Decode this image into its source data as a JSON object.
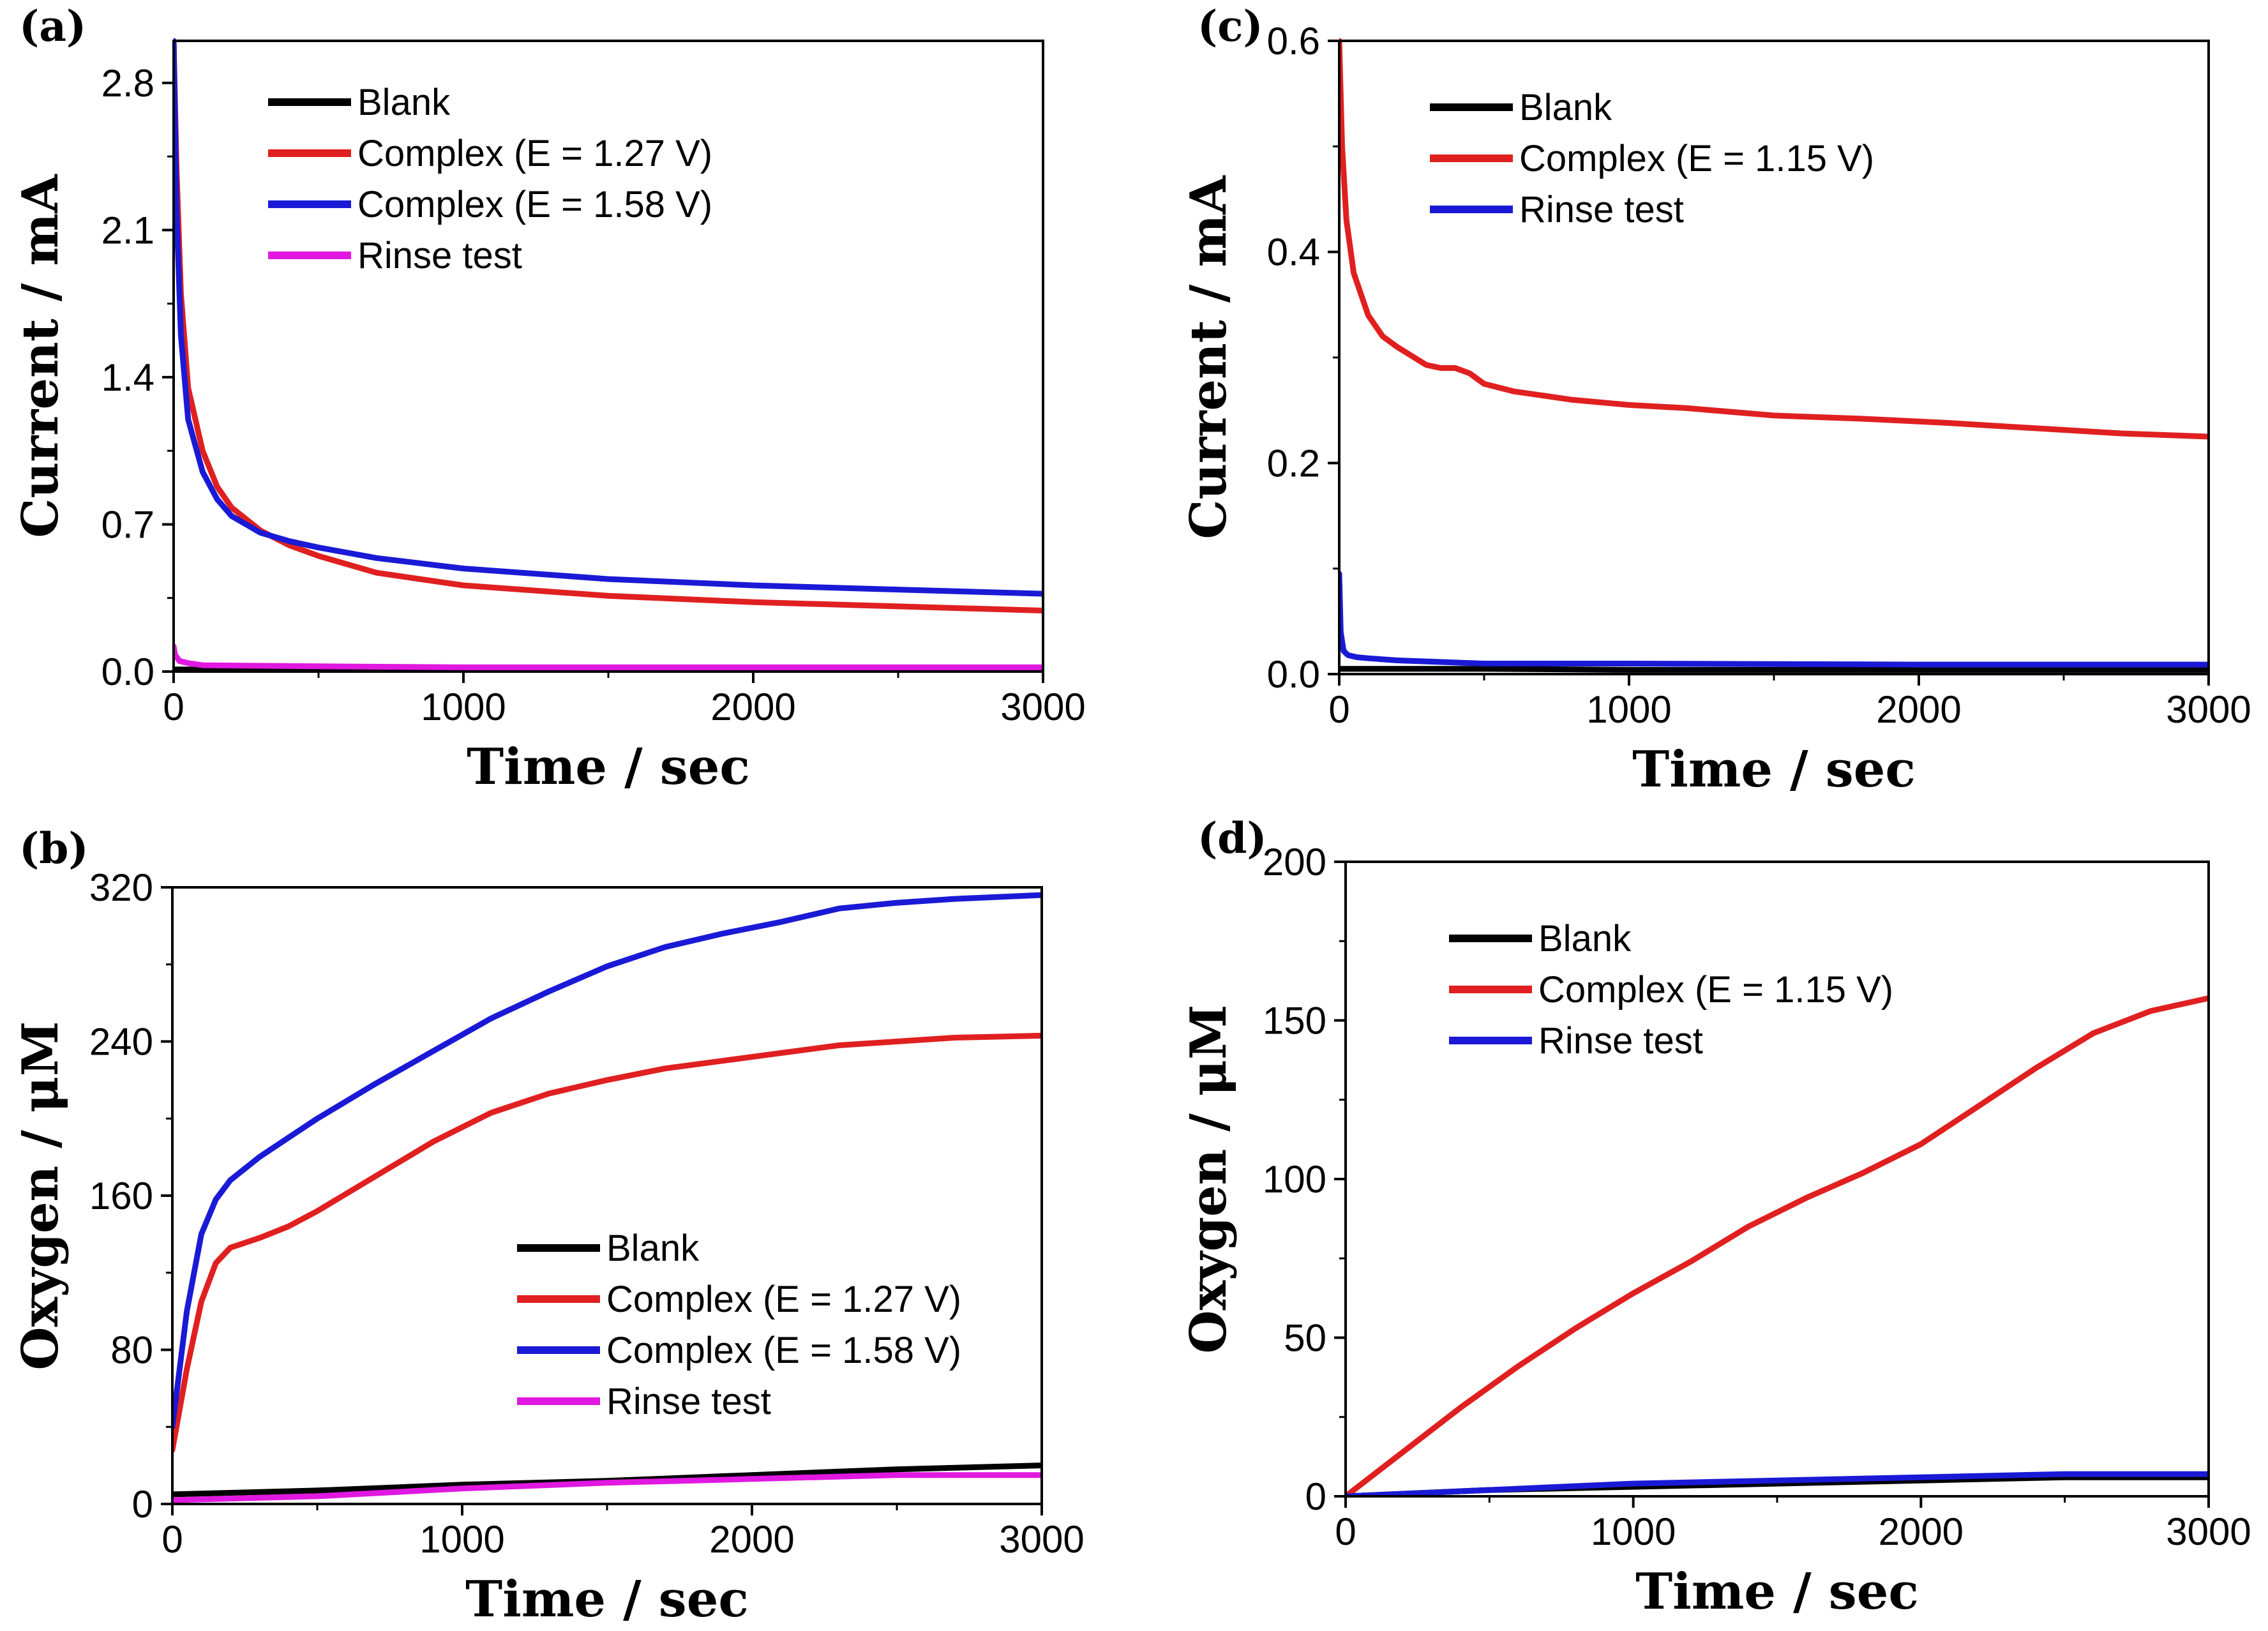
{
  "colors": {
    "Blank": "#000000",
    "Complex (E = 1.27 V)": "#e02020",
    "Complex (E = 1.58 V)": "#1a1ad6",
    "Complex (E = 1.15 V)": "#e02020",
    "Rinse test": "#e018e0"
  },
  "chart_data": [
    {
      "panel": "(a)",
      "type": "line",
      "xlabel": "Time / sec",
      "ylabel": "Current / mA",
      "xlim": [
        0,
        3000
      ],
      "ylim": [
        0,
        3.0
      ],
      "xticks": [
        "0",
        "1000",
        "2000",
        "3000"
      ],
      "yticks": [
        "0.0",
        "0.7",
        "1.4",
        "2.1",
        "2.8"
      ],
      "legend_position": "top-left",
      "series": [
        {
          "name": "Blank",
          "color": "#000000",
          "x": [
            0,
            500,
            1000,
            2000,
            3000
          ],
          "y": [
            0.01,
            0.01,
            0.01,
            0.01,
            0.01
          ]
        },
        {
          "name": "Complex (E = 1.27 V)",
          "color": "#e02020",
          "x": [
            0,
            10,
            25,
            50,
            100,
            150,
            200,
            300,
            400,
            500,
            700,
            1000,
            1500,
            2000,
            2500,
            3000
          ],
          "y": [
            3.0,
            2.4,
            1.8,
            1.35,
            1.05,
            0.88,
            0.78,
            0.67,
            0.6,
            0.55,
            0.47,
            0.41,
            0.36,
            0.33,
            0.31,
            0.29
          ]
        },
        {
          "name": "Complex (E = 1.58 V)",
          "color": "#1a1ad6",
          "x": [
            0,
            10,
            25,
            50,
            100,
            150,
            200,
            300,
            400,
            500,
            700,
            1000,
            1500,
            2000,
            2500,
            3000
          ],
          "y": [
            3.0,
            2.2,
            1.6,
            1.2,
            0.95,
            0.82,
            0.74,
            0.66,
            0.62,
            0.59,
            0.54,
            0.49,
            0.44,
            0.41,
            0.39,
            0.37
          ]
        },
        {
          "name": "Rinse test",
          "color": "#e018e0",
          "x": [
            0,
            5,
            20,
            50,
            100,
            500,
            1000,
            2000,
            3000
          ],
          "y": [
            0.12,
            0.08,
            0.05,
            0.04,
            0.03,
            0.025,
            0.02,
            0.02,
            0.02
          ]
        }
      ]
    },
    {
      "panel": "(b)",
      "type": "line",
      "xlabel": "Time / sec",
      "ylabel": "Oxygen / μM",
      "xlim": [
        0,
        3000
      ],
      "ylim": [
        0,
        320
      ],
      "xticks": [
        "0",
        "1000",
        "2000",
        "3000"
      ],
      "yticks": [
        "0",
        "80",
        "160",
        "240",
        "320"
      ],
      "legend_position": "bottom-right",
      "series": [
        {
          "name": "Blank",
          "color": "#000000",
          "x": [
            0,
            500,
            1000,
            1500,
            2000,
            2500,
            3000
          ],
          "y": [
            5,
            7,
            10,
            12,
            15,
            18,
            20
          ]
        },
        {
          "name": "Complex (E = 1.27 V)",
          "color": "#e02020",
          "x": [
            0,
            50,
            100,
            150,
            200,
            300,
            400,
            500,
            700,
            900,
            1100,
            1300,
            1500,
            1700,
            1900,
            2100,
            2300,
            2500,
            2700,
            3000
          ],
          "y": [
            28,
            70,
            105,
            125,
            133,
            138,
            144,
            152,
            170,
            188,
            203,
            213,
            220,
            226,
            230,
            234,
            238,
            240,
            242,
            243
          ]
        },
        {
          "name": "Complex (E = 1.58 V)",
          "color": "#1a1ad6",
          "x": [
            0,
            50,
            100,
            150,
            200,
            300,
            400,
            500,
            700,
            900,
            1100,
            1300,
            1500,
            1700,
            1900,
            2100,
            2300,
            2500,
            2700,
            3000
          ],
          "y": [
            40,
            100,
            140,
            158,
            168,
            180,
            190,
            200,
            218,
            235,
            252,
            266,
            279,
            289,
            296,
            302,
            309,
            312,
            314,
            316
          ]
        },
        {
          "name": "Rinse test",
          "color": "#e018e0",
          "x": [
            0,
            500,
            1000,
            1500,
            2000,
            2500,
            3000
          ],
          "y": [
            2,
            4,
            8,
            11,
            13,
            15,
            15
          ]
        }
      ]
    },
    {
      "panel": "(c)",
      "type": "line",
      "xlabel": "Time / sec",
      "ylabel": "Current / mA",
      "xlim": [
        0,
        3000
      ],
      "ylim": [
        0,
        0.6
      ],
      "xticks": [
        "0",
        "1000",
        "2000",
        "3000"
      ],
      "yticks": [
        "0.0",
        "0.2",
        "0.4",
        "0.6"
      ],
      "legend_position": "top-left",
      "series": [
        {
          "name": "Blank",
          "color": "#000000",
          "x": [
            0,
            500,
            1000,
            2000,
            3000
          ],
          "y": [
            0.005,
            0.005,
            0.004,
            0.004,
            0.004
          ]
        },
        {
          "name": "Complex (E = 1.15 V)",
          "color": "#e02020",
          "x": [
            0,
            10,
            25,
            50,
            100,
            150,
            200,
            300,
            350,
            400,
            450,
            500,
            600,
            800,
            1000,
            1200,
            1500,
            1800,
            2100,
            2400,
            2700,
            3000
          ],
          "y": [
            0.6,
            0.5,
            0.43,
            0.38,
            0.34,
            0.32,
            0.31,
            0.293,
            0.29,
            0.29,
            0.285,
            0.275,
            0.268,
            0.26,
            0.255,
            0.252,
            0.245,
            0.242,
            0.238,
            0.233,
            0.228,
            0.225
          ]
        },
        {
          "name": "Rinse test",
          "color": "#1a1ad6",
          "x": [
            0,
            5,
            15,
            30,
            60,
            100,
            200,
            500,
            1000,
            2000,
            3000
          ],
          "y": [
            0.095,
            0.04,
            0.022,
            0.018,
            0.016,
            0.015,
            0.013,
            0.01,
            0.01,
            0.009,
            0.009
          ]
        }
      ]
    },
    {
      "panel": "(d)",
      "type": "line",
      "xlabel": "Time / sec",
      "ylabel": "Oxygen / μM",
      "xlim": [
        0,
        3000
      ],
      "ylim": [
        0,
        200
      ],
      "xticks": [
        "0",
        "1000",
        "2000",
        "3000"
      ],
      "yticks": [
        "0",
        "50",
        "100",
        "150",
        "200"
      ],
      "legend_position": "top-left",
      "series": [
        {
          "name": "Blank",
          "color": "#000000",
          "x": [
            0,
            500,
            1000,
            1500,
            2000,
            2500,
            3000
          ],
          "y": [
            0,
            2,
            3,
            4,
            5,
            6,
            6
          ]
        },
        {
          "name": "Complex (E = 1.15 V)",
          "color": "#e02020",
          "x": [
            0,
            200,
            400,
            600,
            800,
            1000,
            1200,
            1400,
            1600,
            1800,
            2000,
            2200,
            2400,
            2600,
            2800,
            3000
          ],
          "y": [
            0,
            14,
            28,
            41,
            53,
            64,
            74,
            85,
            94,
            102,
            111,
            123,
            135,
            146,
            153,
            157
          ]
        },
        {
          "name": "Rinse test",
          "color": "#1a1ad6",
          "x": [
            0,
            500,
            1000,
            1500,
            2000,
            2500,
            3000
          ],
          "y": [
            0,
            2,
            4,
            5,
            6,
            7,
            7
          ]
        }
      ]
    }
  ]
}
